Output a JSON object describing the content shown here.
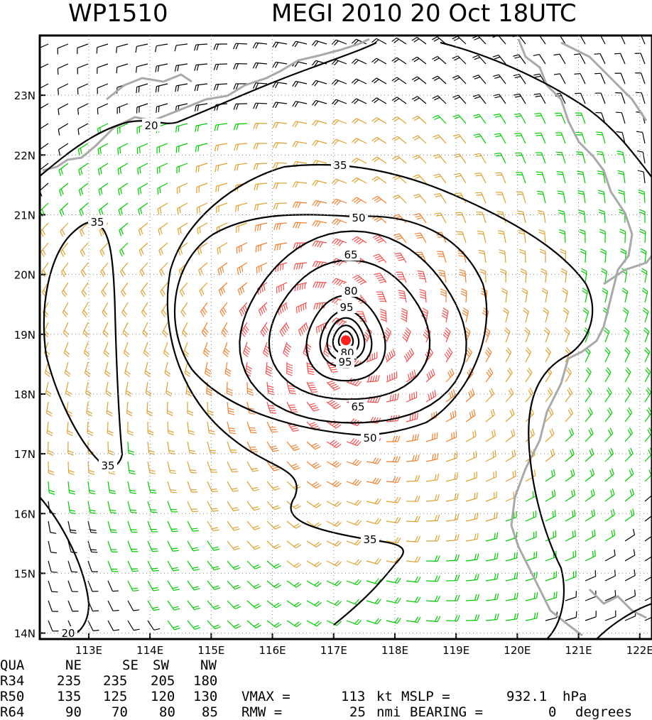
{
  "header": {
    "storm_id": "WP1510",
    "storm_info": "MEGI 2010 20 Oct 18UTC"
  },
  "map": {
    "lon_range": [
      112.2,
      122.2
    ],
    "lat_range": [
      13.9,
      24.0
    ],
    "lon_ticks": [
      "113E",
      "114E",
      "115E",
      "116E",
      "117E",
      "118E",
      "119E",
      "120E",
      "121E",
      "122E"
    ],
    "lat_ticks": [
      "23N",
      "22N",
      "21N",
      "20N",
      "19N",
      "18N",
      "17N",
      "16N",
      "15N",
      "14N"
    ],
    "center": {
      "lon": 117.2,
      "lat": 18.9
    },
    "contour_labels": [
      "20",
      "20",
      "35",
      "35",
      "35",
      "35",
      "50",
      "50",
      "65",
      "65",
      "80",
      "80",
      "95",
      "95"
    ],
    "colors": {
      "under_34": "#000000",
      "34_to_50": "#00cc00",
      "50_to_64": "#e0a030",
      "64_to_80": "#f08030",
      "over_80": "#f05050",
      "coast": "#a9a9a9",
      "center": "#ff2020"
    }
  },
  "stats": {
    "quadrant_header": [
      "QUA",
      "NE",
      "SE",
      "SW",
      "NW"
    ],
    "radii_rows": [
      [
        "R34",
        "235",
        "235",
        "205",
        "180"
      ],
      [
        "R50",
        "135",
        "125",
        "120",
        "130"
      ],
      [
        "R64",
        "90",
        "70",
        "80",
        "85"
      ]
    ],
    "vmax_label": "VMAX =",
    "vmax_value": "113",
    "vmax_unit": "kt",
    "mslp_label": "MSLP =",
    "mslp_value": "932.1",
    "mslp_unit": "hPa",
    "rmw_label": "RMW =",
    "rmw_value": "25",
    "rmw_unit": "nmi",
    "bearing_label": "BEARING =",
    "bearing_value": "0",
    "bearing_unit": "degrees"
  }
}
